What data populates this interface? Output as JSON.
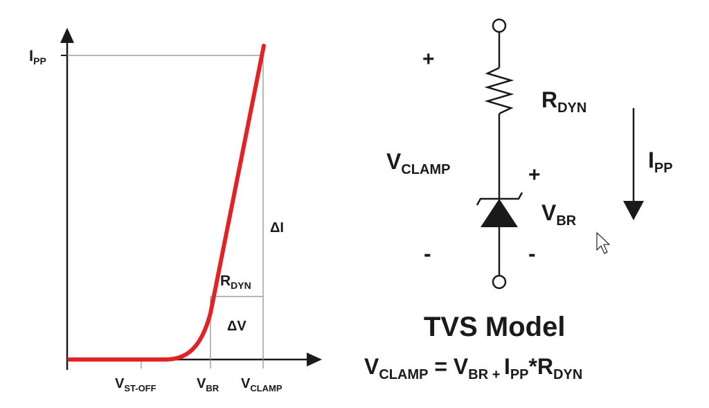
{
  "graph": {
    "y_label": {
      "main": "I",
      "sub": "PP"
    },
    "x_ticks": [
      {
        "main": "V",
        "sub": "ST-OFF"
      },
      {
        "main": "V",
        "sub": "BR"
      },
      {
        "main": "V",
        "sub": "CLAMP"
      }
    ],
    "delta_i": "ΔI",
    "delta_v": "ΔV",
    "slope_label": {
      "main": "R",
      "sub": "DYN"
    },
    "curve_color": "#e32227"
  },
  "circuit": {
    "plus_top": "+",
    "minus_bottom": "-",
    "vclamp_label": {
      "main": "V",
      "sub": "CLAMP"
    },
    "resistor_label": {
      "main": "R",
      "sub": "DYN"
    },
    "vbr_plus": "+",
    "vbr_minus": "-",
    "vbr_label": {
      "main": "V",
      "sub": "BR"
    },
    "current_label": {
      "main": "I",
      "sub": "PP"
    }
  },
  "model_title": "TVS Model",
  "equation": {
    "lhs_main": "V",
    "lhs_sub": "CLAMP",
    "eq": " = ",
    "t1_main": "V",
    "t1_sub": "BR",
    "plus": " + ",
    "t2_main": "I",
    "t2_sub": "PP",
    "star": "*",
    "t3_main": "R",
    "t3_sub": "DYN"
  }
}
